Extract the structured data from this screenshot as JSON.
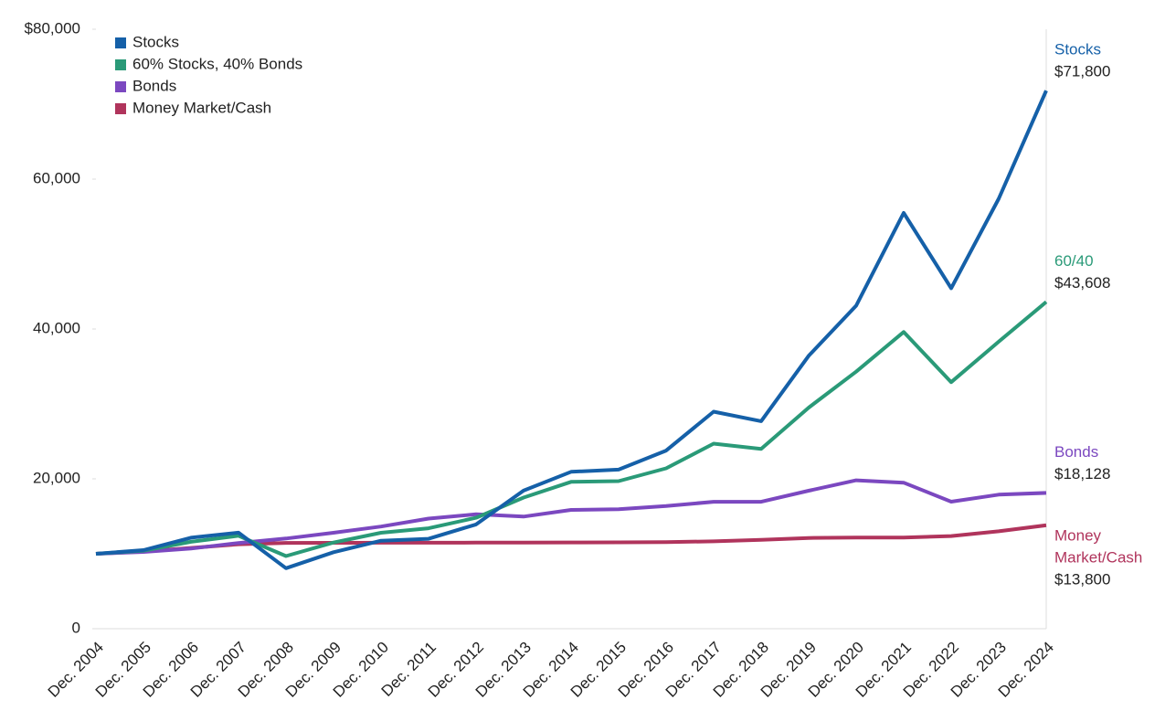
{
  "chart_data": {
    "type": "line",
    "categories": [
      "Dec. 2004",
      "Dec. 2005",
      "Dec. 2006",
      "Dec. 2007",
      "Dec. 2008",
      "Dec. 2009",
      "Dec. 2010",
      "Dec. 2011",
      "Dec. 2012",
      "Dec. 2013",
      "Dec. 2014",
      "Dec. 2015",
      "Dec. 2016",
      "Dec. 2017",
      "Dec. 2018",
      "Dec. 2019",
      "Dec. 2020",
      "Dec. 2021",
      "Dec. 2022",
      "Dec. 2023",
      "Dec. 2024"
    ],
    "series": [
      {
        "name": "Stocks",
        "color": "#1560a8",
        "end_label": [
          "Stocks"
        ],
        "end_value": "$71,800",
        "values": [
          10000,
          10491,
          12148,
          12815,
          8074,
          10210,
          11748,
          11996,
          13916,
          18423,
          20945,
          21235,
          23774,
          28964,
          27694,
          36414,
          43115,
          55490,
          45440,
          57383,
          71800
        ]
      },
      {
        "name": "60% Stocks, 40% Bonds",
        "color": "#2a9a78",
        "end_label": [
          "60/40"
        ],
        "end_value": "$43,608",
        "values": [
          10000,
          10420,
          11600,
          12400,
          9700,
          11500,
          12800,
          13400,
          14800,
          17500,
          19600,
          19700,
          21400,
          24700,
          24000,
          29500,
          34300,
          39600,
          32900,
          38300,
          43608
        ]
      },
      {
        "name": "Bonds",
        "color": "#7b48c0",
        "end_label": [
          "Bonds"
        ],
        "end_value": "$18,128",
        "values": [
          10000,
          10240,
          10690,
          11440,
          12040,
          12800,
          13630,
          14700,
          15270,
          14960,
          15850,
          15940,
          16360,
          16940,
          16940,
          18420,
          19800,
          19490,
          16950,
          17890,
          18128
        ]
      },
      {
        "name": "Money Market/Cash",
        "color": "#b0345c",
        "end_label": [
          "Money",
          "Market/Cash"
        ],
        "end_value": "$13,800",
        "values": [
          10000,
          10300,
          10780,
          11270,
          11450,
          11460,
          11470,
          11480,
          11490,
          11500,
          11510,
          11530,
          11560,
          11660,
          11860,
          12110,
          12170,
          12170,
          12370,
          13000,
          13800
        ]
      }
    ],
    "ylim": [
      0,
      80000
    ],
    "yticks": [
      0,
      {
        "value": 20000,
        "label": "20,000"
      },
      {
        "value": 40000,
        "label": "40,000"
      },
      {
        "value": 60000,
        "label": "60,000"
      },
      {
        "value": 80000,
        "label": "$80,000"
      }
    ],
    "grid": false,
    "legend": "top-left"
  }
}
